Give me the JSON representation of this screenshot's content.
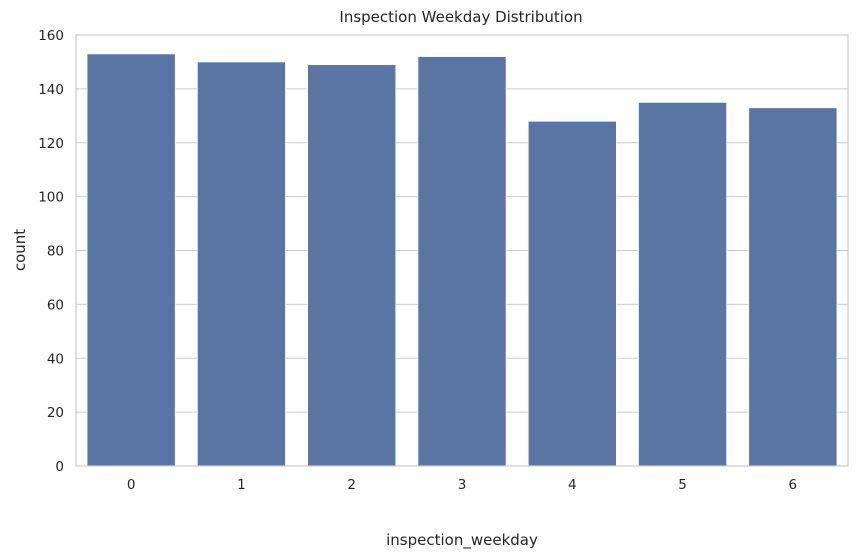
{
  "chart_data": {
    "type": "bar",
    "title": "Inspection Weekday Distribution",
    "xlabel": "inspection_weekday",
    "ylabel": "count",
    "categories": [
      "0",
      "1",
      "2",
      "3",
      "4",
      "5",
      "6"
    ],
    "values": [
      153,
      150,
      149,
      152,
      128,
      135,
      133
    ],
    "ylim": [
      0,
      160
    ],
    "yticks": [
      0,
      20,
      40,
      60,
      80,
      100,
      120,
      140,
      160
    ],
    "grid": "horizontal",
    "colors": {
      "bar": "#5975a4",
      "grid": "#cccccc",
      "text": "#262626"
    }
  }
}
